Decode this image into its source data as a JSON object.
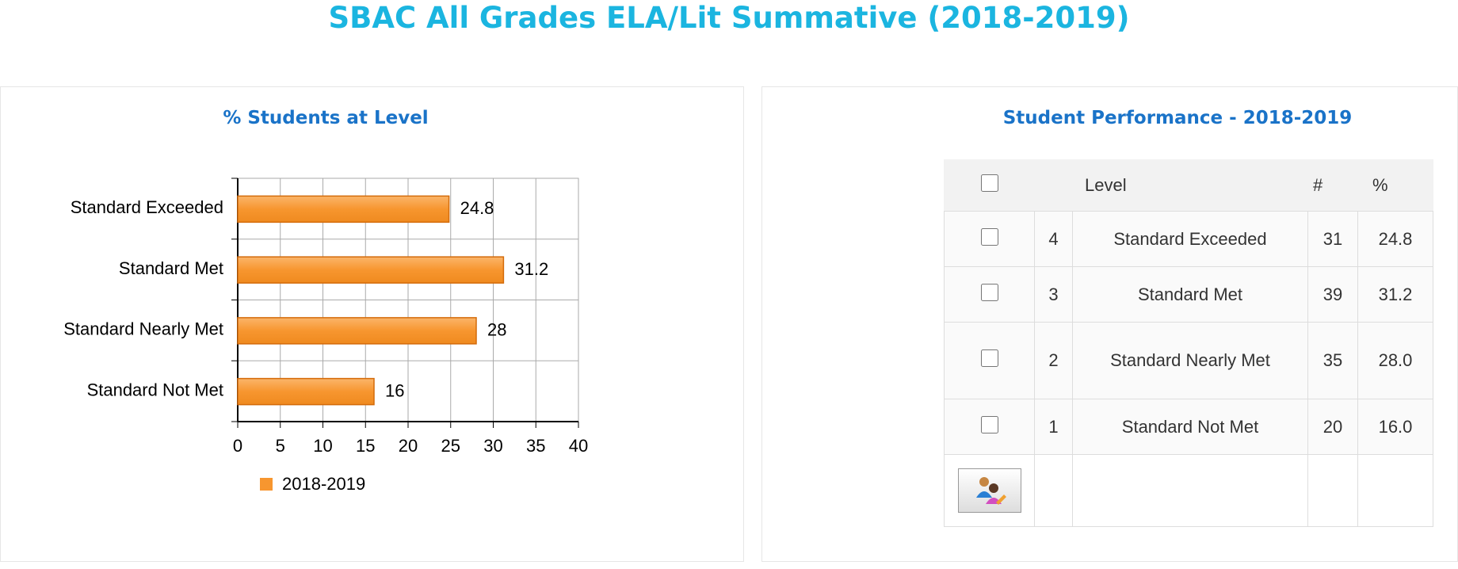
{
  "header": {
    "title": "SBAC All Grades ELA/Lit Summative (2018-2019)"
  },
  "chart_data": {
    "type": "bar",
    "orientation": "horizontal",
    "title": "% Students at Level",
    "categories": [
      "Standard Exceeded",
      "Standard Met",
      "Standard Nearly Met",
      "Standard Not Met"
    ],
    "series": [
      {
        "name": "2018-2019",
        "color": "#f7962f",
        "values": [
          24.8,
          31.2,
          28,
          16
        ]
      }
    ],
    "xlim": [
      0,
      40
    ],
    "xticks": [
      0,
      5,
      10,
      15,
      20,
      25,
      30,
      35,
      40
    ],
    "grid": true,
    "legend": "bottom-left"
  },
  "table": {
    "title": "Student Performance - 2018-2019",
    "columns": [
      "Level",
      "#",
      "%"
    ],
    "rows": [
      {
        "level": 4,
        "color": "#0000ff",
        "label": "Standard Exceeded",
        "count": 31,
        "percent": "24.8"
      },
      {
        "level": 3,
        "color": "#008000",
        "label": "Standard Met",
        "count": 39,
        "percent": "31.2"
      },
      {
        "level": 2,
        "color": "#ffd700",
        "label": "Standard Nearly Met",
        "count": 35,
        "percent": "28.0"
      },
      {
        "level": 1,
        "color": "#ff0000",
        "label": "Standard Not Met",
        "count": 20,
        "percent": "16.0"
      }
    ]
  }
}
